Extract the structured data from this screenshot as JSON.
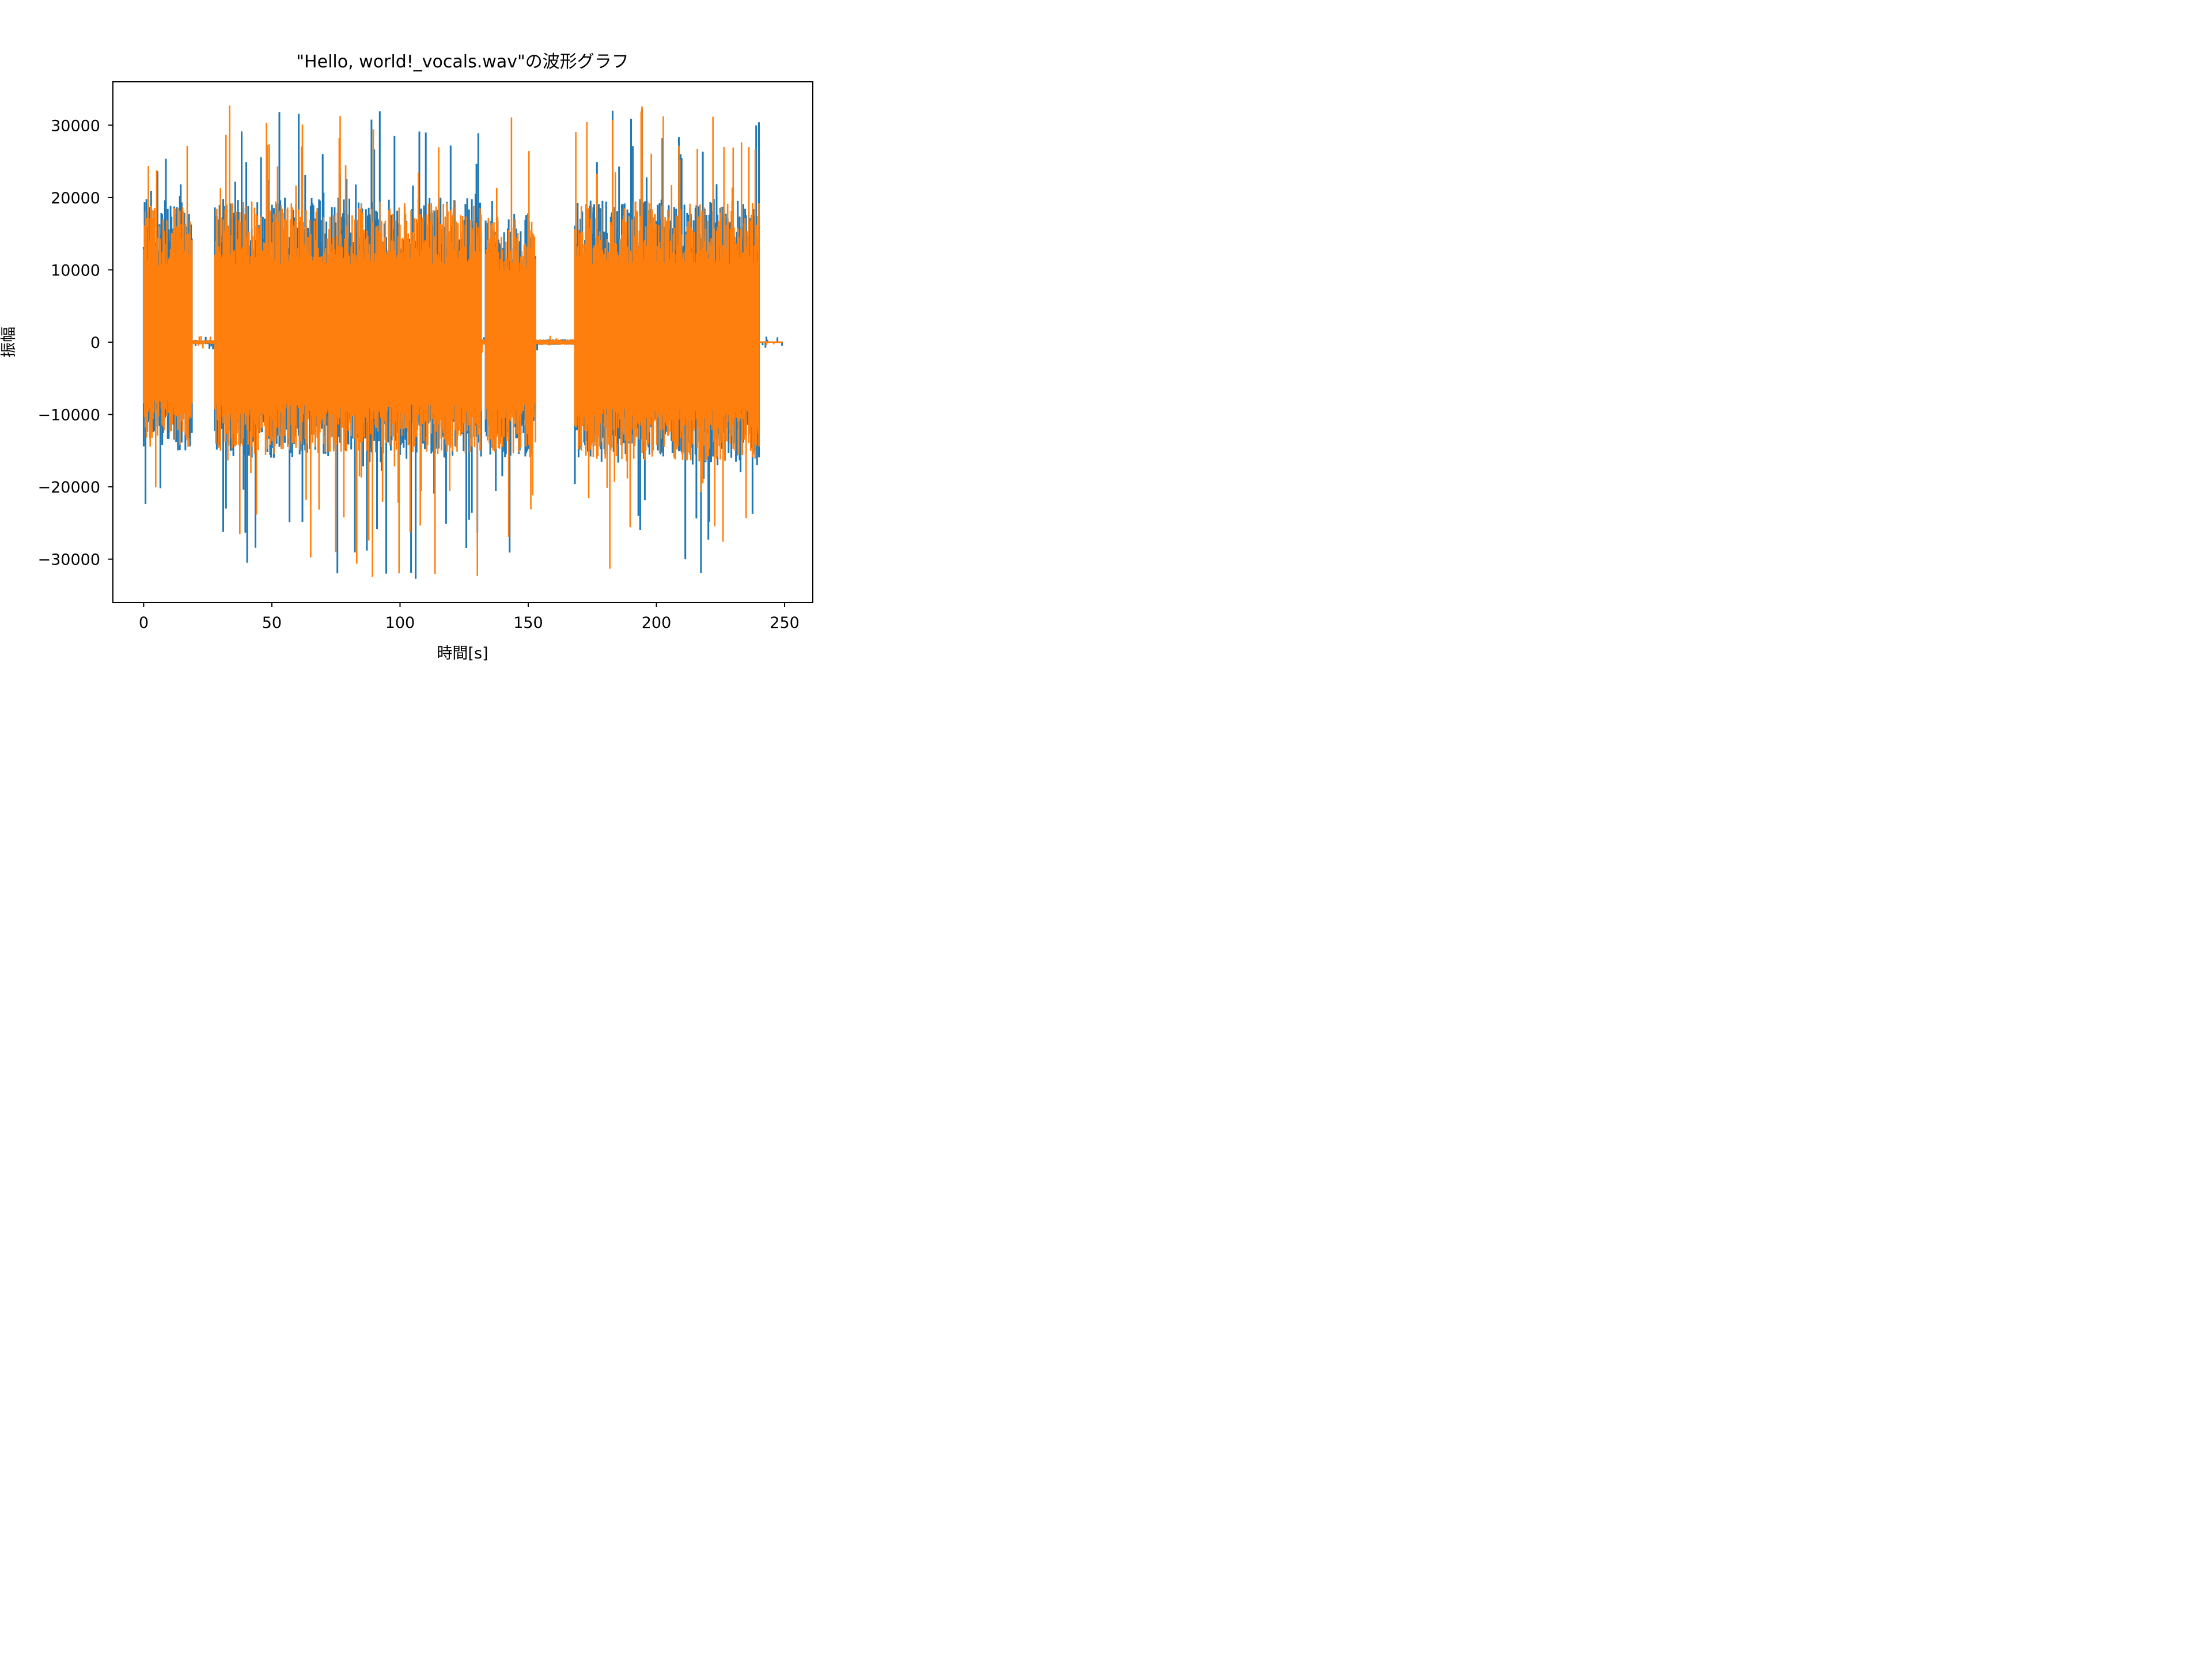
{
  "chart_data": {
    "type": "line",
    "title": "\"Hello, world!_vocals.wav\"の波形グラフ",
    "xlabel": "時間[s]",
    "ylabel": "振幅",
    "xlim": [
      -12,
      261
    ],
    "ylim": [
      -36000,
      36000
    ],
    "grid": false,
    "legend": "none",
    "x_ticks": [
      0,
      50,
      100,
      150,
      200,
      250
    ],
    "x_tick_labels": [
      "0",
      "50",
      "100",
      "150",
      "200",
      "250"
    ],
    "y_ticks": [
      -30000,
      -20000,
      -10000,
      0,
      10000,
      20000,
      30000
    ],
    "y_tick_labels": [
      "−30000",
      "−20000",
      "−10000",
      "0",
      "10000",
      "20000",
      "30000"
    ],
    "series": [
      {
        "color": "#1f77b4",
        "segments": [
          {
            "x": [
              0,
              18.8
            ],
            "peak_max": 27500,
            "peak_min": -22500,
            "typical_max": 20000,
            "typical_min": -15000
          },
          {
            "x": [
              18.8,
              27.8
            ],
            "peak_max": 1000,
            "peak_min": -1000,
            "typical_max": 300,
            "typical_min": -300
          },
          {
            "x": [
              27.8,
              131.6
            ],
            "peak_max": 32500,
            "peak_min": -32800,
            "typical_max": 20000,
            "typical_min": -16000
          },
          {
            "x": [
              131.6,
              133.4
            ],
            "peak_max": 1500,
            "peak_min": -1500,
            "typical_max": 400,
            "typical_min": -400
          },
          {
            "x": [
              133.4,
              152.8
            ],
            "peak_max": 32800,
            "peak_min": -29500,
            "typical_max": 18000,
            "typical_min": -16000
          },
          {
            "x": [
              152.8,
              168.2
            ],
            "peak_max": 1200,
            "peak_min": -1200,
            "typical_max": 400,
            "typical_min": -400
          },
          {
            "x": [
              168.2,
              240.0
            ],
            "peak_max": 32800,
            "peak_min": -32000,
            "typical_max": 20000,
            "typical_min": -17000
          },
          {
            "x": [
              240.0,
              249.0
            ],
            "peak_max": 800,
            "peak_min": -800,
            "typical_max": 100,
            "typical_min": -100
          }
        ]
      },
      {
        "color": "#ff7f0e",
        "segments": [
          {
            "x": [
              0,
              18.8
            ],
            "peak_max": 27500,
            "peak_min": -20500,
            "typical_max": 19000,
            "typical_min": -14500
          },
          {
            "x": [
              18.8,
              27.8
            ],
            "peak_max": 1000,
            "peak_min": -1000,
            "typical_max": 300,
            "typical_min": -300
          },
          {
            "x": [
              27.8,
              131.6
            ],
            "peak_max": 32800,
            "peak_min": -32700,
            "typical_max": 19500,
            "typical_min": -15500
          },
          {
            "x": [
              131.6,
              133.4
            ],
            "peak_max": 1500,
            "peak_min": -1500,
            "typical_max": 400,
            "typical_min": -400
          },
          {
            "x": [
              133.4,
              152.8
            ],
            "peak_max": 32500,
            "peak_min": -29000,
            "typical_max": 17500,
            "typical_min": -15500
          },
          {
            "x": [
              152.8,
              168.2
            ],
            "peak_max": 1200,
            "peak_min": -1200,
            "typical_max": 400,
            "typical_min": -400
          },
          {
            "x": [
              168.2,
              240.0
            ],
            "peak_max": 32700,
            "peak_min": -31500,
            "typical_max": 19500,
            "typical_min": -16500
          },
          {
            "x": [
              240.0,
              249.0
            ],
            "peak_max": 800,
            "peak_min": -800,
            "typical_max": 100,
            "typical_min": -100
          }
        ]
      }
    ]
  }
}
